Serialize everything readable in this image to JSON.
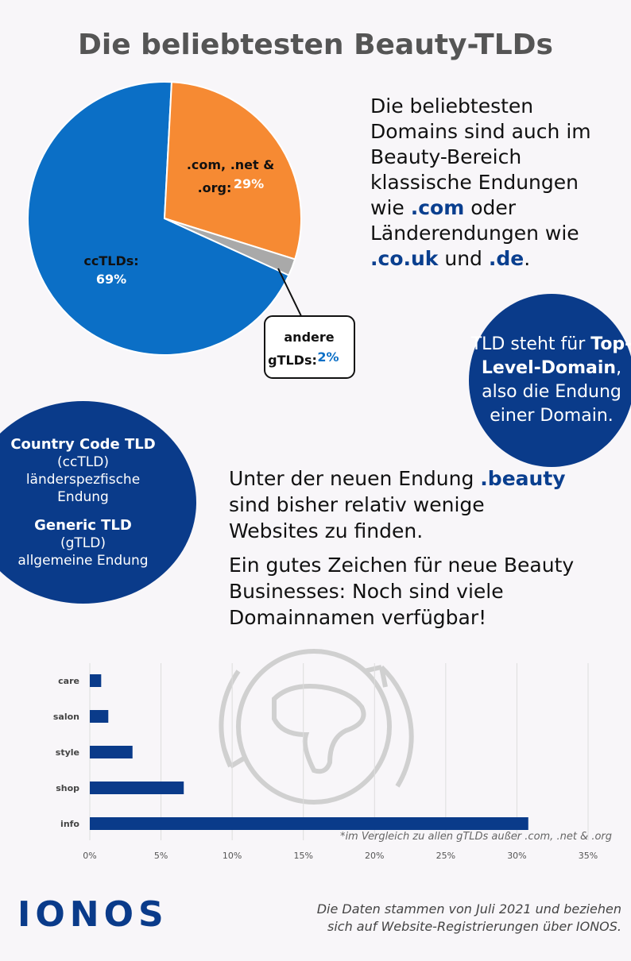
{
  "title": "Die beliebtesten Beauty-TLDs",
  "intro": [
    "Die beliebtesten Domains sind auch im Beauty-Bereich klassische Endungen wie ",
    ".com",
    " oder Länderendungen wie ",
    ".co.uk",
    " und ",
    ".de",
    "."
  ],
  "tld_info": [
    "TLD steht für ",
    "Top-Level-Domain",
    ", also die Endung einer Domain."
  ],
  "legend_circle": {
    "cctld_title": "Country Code TLD",
    "cctld_abbr": "(ccTLD)",
    "cctld_desc": "länderspezfische Endung",
    "gtld_title": "Generic TLD",
    "gtld_abbr": "(gTLD)",
    "gtld_desc": "allgemeine Endung"
  },
  "beauty_text": [
    [
      "Unter der neuen Endung ",
      ".beauty",
      " sind bisher relativ wenige Websites zu finden."
    ],
    [
      "Ein gutes Zeichen für neue Beauty Businesses: Noch sind viele Domainnamen verfügbar!"
    ]
  ],
  "chart_data": [
    {
      "type": "pie",
      "categories": [
        "ccTLDs:",
        ".com, .net & .org:",
        "andere gTLDs:"
      ],
      "values": [
        69,
        29,
        2
      ],
      "value_labels": [
        "69%",
        "29%",
        "2%"
      ],
      "colors": [
        "#0b6fc6",
        "#f68a33",
        "#a9a9a9"
      ]
    },
    {
      "type": "hbar",
      "categories": [
        "care",
        "salon",
        "style",
        "shop",
        "info"
      ],
      "values": [
        0.8,
        1.3,
        3.0,
        6.6,
        30.8
      ],
      "color": "#0a3b8a",
      "xlim": [
        0,
        35
      ],
      "xticks": [
        {
          "value": 0,
          "label": "0%"
        },
        {
          "value": 5,
          "label": "5%"
        },
        {
          "value": 10,
          "label": "10%"
        },
        {
          "value": 15,
          "label": "15%"
        },
        {
          "value": 20,
          "label": "20%"
        },
        {
          "value": 25,
          "label": "25%"
        },
        {
          "value": 30,
          "label": "30%"
        },
        {
          "value": 35,
          "label": "35%"
        }
      ],
      "grid": true,
      "annotation": "*im Vergleich zu allen gTLDs außer .com, .net & .org"
    }
  ],
  "logo": "IONOS",
  "source": "Die Daten stammen von Juli 2021 und beziehen sich auf Website-Registrierungen über IONOS."
}
